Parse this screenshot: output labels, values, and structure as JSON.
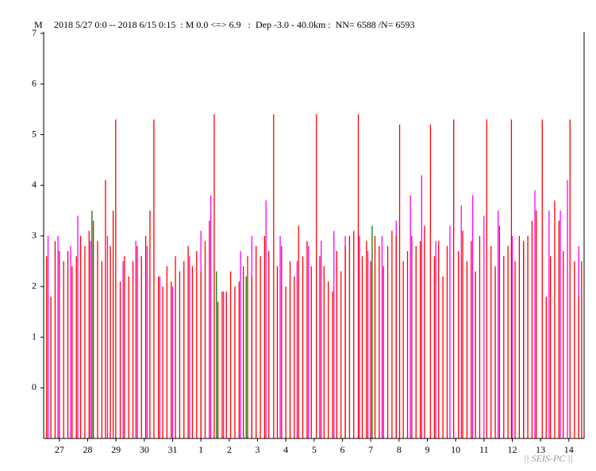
{
  "chart_data": {
    "type": "spike",
    "title": "2018 5/27 0:0 -- 2018 6/15 0:15  : M 0.0 <=> 6.9   :  Dep -3.0 - 40.0km :  NN= 6588 /N= 6593",
    "y_label": "M",
    "watermark": "|| SEIS-PC ||",
    "ylim": [
      -1,
      7
    ],
    "yticks": [
      0,
      1,
      2,
      3,
      4,
      5,
      6,
      7
    ],
    "xlim": [
      0,
      19.01
    ],
    "xticks": [
      {
        "value": 0.5,
        "label": "27"
      },
      {
        "value": 1.5,
        "label": "28"
      },
      {
        "value": 2.5,
        "label": "29"
      },
      {
        "value": 3.5,
        "label": "30"
      },
      {
        "value": 4.5,
        "label": "31"
      },
      {
        "value": 5.5,
        "label": "1"
      },
      {
        "value": 6.5,
        "label": "2"
      },
      {
        "value": 7.5,
        "label": "3"
      },
      {
        "value": 8.5,
        "label": "4"
      },
      {
        "value": 9.5,
        "label": "5"
      },
      {
        "value": 10.5,
        "label": "6"
      },
      {
        "value": 11.5,
        "label": "7"
      },
      {
        "value": 12.5,
        "label": "8"
      },
      {
        "value": 13.5,
        "label": "9"
      },
      {
        "value": 14.5,
        "label": "10"
      },
      {
        "value": 15.5,
        "label": "11"
      },
      {
        "value": 16.5,
        "label": "12"
      },
      {
        "value": 17.5,
        "label": "13"
      },
      {
        "value": 18.5,
        "label": "14"
      }
    ],
    "series": [
      {
        "color": "#ff00ff",
        "x": [
          0.1,
          0.45,
          0.9,
          1.15,
          1.6,
          2.2,
          2.75,
          3.2,
          3.6,
          4.05,
          4.5,
          5.1,
          5.5,
          5.85,
          6.3,
          6.9,
          7.3,
          7.8,
          8.3,
          8.9,
          9.3,
          9.75,
          10.2,
          10.6,
          11.1,
          11.4,
          11.9,
          12.4,
          12.9,
          13.3,
          13.8,
          14.3,
          14.7,
          15.1,
          15.5,
          16.0,
          16.5,
          16.9,
          17.3,
          17.8,
          18.2,
          18.45,
          18.85
        ],
        "values": [
          3.0,
          3.0,
          2.8,
          3.4,
          2.9,
          3.0,
          2.5,
          2.9,
          2.8,
          2.2,
          2.0,
          2.6,
          3.1,
          3.8,
          1.9,
          2.7,
          3.0,
          3.7,
          3.0,
          2.5,
          2.8,
          2.9,
          3.1,
          3.0,
          3.0,
          2.7,
          3.0,
          3.3,
          3.8,
          4.2,
          2.9,
          3.2,
          3.6,
          3.8,
          3.4,
          3.5,
          3.0,
          2.8,
          3.9,
          3.5,
          3.5,
          4.1,
          2.8
        ]
      },
      {
        "color": "#ff0000",
        "x": [
          0.05,
          0.2,
          0.35,
          0.5,
          0.65,
          0.8,
          0.95,
          1.1,
          1.25,
          1.4,
          1.55,
          1.7,
          1.85,
          2.0,
          2.13,
          2.3,
          2.4,
          2.49,
          2.65,
          2.8,
          2.95,
          3.1,
          3.25,
          3.4,
          3.55,
          3.7,
          3.84,
          4.0,
          4.15,
          4.3,
          4.45,
          4.6,
          4.75,
          4.9,
          5.05,
          5.2,
          5.35,
          5.5,
          5.65,
          5.8,
          5.97,
          6.1,
          6.25,
          6.4,
          6.55,
          6.7,
          6.85,
          7.0,
          7.15,
          7.3,
          7.45,
          7.6,
          7.75,
          7.9,
          8.07,
          8.2,
          8.35,
          8.5,
          8.65,
          8.8,
          8.95,
          9.1,
          9.25,
          9.4,
          9.58,
          9.7,
          9.85,
          10.0,
          10.15,
          10.3,
          10.45,
          10.6,
          10.75,
          10.9,
          11.06,
          11.2,
          11.35,
          11.5,
          11.65,
          11.8,
          11.95,
          12.1,
          12.25,
          12.4,
          12.52,
          12.65,
          12.8,
          12.95,
          13.1,
          13.25,
          13.4,
          13.61,
          13.75,
          13.9,
          14.05,
          14.2,
          14.43,
          14.6,
          14.75,
          14.9,
          15.05,
          15.2,
          15.35,
          15.6,
          15.75,
          15.9,
          16.05,
          16.2,
          16.35,
          16.47,
          16.6,
          16.75,
          16.9,
          17.05,
          17.2,
          17.35,
          17.56,
          17.7,
          17.85,
          18.0,
          18.15,
          18.3,
          18.54,
          18.7,
          18.85,
          18.95
        ],
        "values": [
          2.6,
          1.8,
          2.9,
          2.7,
          2.5,
          2.7,
          2.4,
          2.6,
          3.0,
          2.8,
          3.1,
          3.3,
          2.9,
          2.5,
          4.1,
          2.8,
          3.5,
          5.3,
          2.1,
          2.6,
          2.2,
          2.5,
          2.8,
          2.6,
          3.0,
          3.5,
          5.3,
          2.2,
          2.0,
          2.4,
          2.1,
          2.6,
          2.3,
          2.5,
          2.8,
          2.4,
          2.7,
          2.3,
          2.9,
          3.3,
          5.4,
          1.7,
          1.9,
          1.9,
          2.3,
          2.0,
          2.1,
          2.4,
          2.6,
          2.2,
          2.8,
          2.6,
          3.0,
          2.7,
          5.4,
          2.4,
          2.8,
          2.0,
          2.5,
          2.2,
          3.2,
          2.6,
          2.9,
          2.4,
          5.4,
          2.6,
          2.4,
          2.1,
          1.9,
          2.7,
          2.3,
          2.8,
          3.0,
          3.1,
          5.4,
          2.6,
          2.9,
          2.5,
          3.0,
          2.8,
          2.4,
          2.8,
          3.1,
          3.0,
          5.2,
          2.5,
          2.7,
          3.0,
          2.8,
          2.9,
          3.2,
          5.2,
          2.6,
          2.9,
          2.2,
          2.8,
          5.3,
          2.7,
          3.1,
          2.5,
          2.9,
          2.3,
          3.0,
          5.3,
          2.8,
          2.4,
          3.2,
          2.6,
          2.8,
          5.3,
          2.5,
          3.0,
          2.9,
          3.0,
          3.3,
          3.5,
          5.3,
          1.8,
          2.6,
          3.7,
          3.3,
          2.7,
          5.3,
          2.5,
          1.8,
          2.5
        ]
      },
      {
        "color": "#008000",
        "x": [
          1.65,
          6.05,
          7.1,
          11.55
        ],
        "values": [
          3.5,
          2.3,
          2.2,
          3.2
        ]
      }
    ]
  }
}
